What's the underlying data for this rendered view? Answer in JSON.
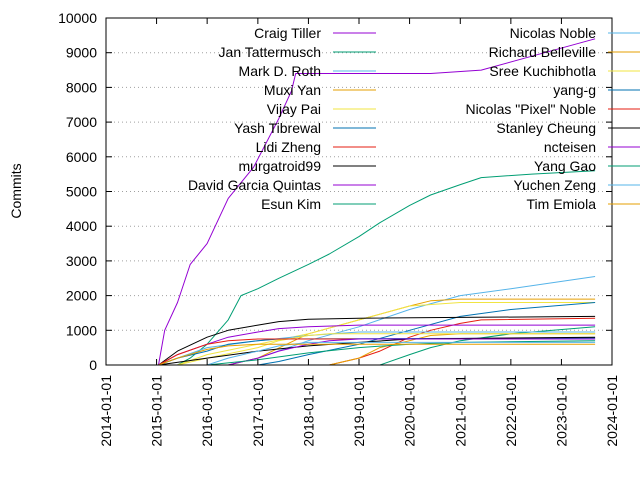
{
  "chart_data": {
    "type": "line",
    "title": "",
    "xlabel": "",
    "ylabel": "Commits",
    "xlim": [
      "2014-01-01",
      "2024-01-01"
    ],
    "ylim": [
      0,
      10000
    ],
    "y_ticks": [
      0,
      1000,
      2000,
      3000,
      4000,
      5000,
      6000,
      7000,
      8000,
      9000,
      10000
    ],
    "x_ticks": [
      "2014-01-01",
      "2015-01-01",
      "2016-01-01",
      "2017-01-01",
      "2018-01-01",
      "2019-01-01",
      "2020-01-01",
      "2021-01-01",
      "2022-01-01",
      "2023-01-01",
      "2024-01-01"
    ],
    "grid": "horizontal dotted",
    "legend_placement": "top, two columns",
    "series": [
      {
        "name": "Craig Tiller",
        "color": "#9400d3",
        "x": [
          "2015-01-15",
          "2015-03-01",
          "2015-06-01",
          "2015-09-01",
          "2016-01-01",
          "2016-06-01",
          "2016-12-01",
          "2017-06-01",
          "2017-09-01",
          "2017-10-01",
          "2018-06-01",
          "2019-06-01",
          "2020-06-01",
          "2021-06-01",
          "2022-06-01",
          "2023-09-01"
        ],
        "y": [
          0,
          1000,
          1800,
          2900,
          3500,
          4800,
          5700,
          7100,
          7900,
          8400,
          8400,
          8400,
          8400,
          8500,
          8900,
          9400
        ]
      },
      {
        "name": "Jan Tattermusch",
        "color": "#009e73",
        "x": [
          "2015-06-01",
          "2015-09-01",
          "2016-01-01",
          "2016-06-01",
          "2016-09-01",
          "2017-01-01",
          "2017-06-01",
          "2018-01-01",
          "2018-06-01",
          "2019-01-01",
          "2019-06-01",
          "2020-01-01",
          "2020-06-01",
          "2021-01-01",
          "2021-06-01",
          "2022-06-01",
          "2023-09-01"
        ],
        "y": [
          0,
          200,
          600,
          1300,
          2000,
          2200,
          2500,
          2900,
          3200,
          3700,
          4100,
          4600,
          4900,
          5200,
          5400,
          5500,
          5600
        ]
      },
      {
        "name": "Mark D. Roth",
        "color": "#56b4e9",
        "x": [
          "2016-06-01",
          "2017-01-01",
          "2018-01-01",
          "2019-01-01",
          "2020-01-01",
          "2021-01-01",
          "2022-01-01",
          "2023-09-01"
        ],
        "y": [
          0,
          200,
          700,
          1100,
          1600,
          2000,
          2200,
          2550
        ]
      },
      {
        "name": "Muxi Yan",
        "color": "#e69f00",
        "x": [
          "2016-06-01",
          "2017-01-01",
          "2018-01-01",
          "2019-01-01",
          "2020-01-01",
          "2020-06-01",
          "2021-01-01",
          "2023-09-01"
        ],
        "y": [
          0,
          200,
          900,
          1300,
          1700,
          1850,
          1900,
          1900
        ]
      },
      {
        "name": "Vijay Pai",
        "color": "#f0e442",
        "x": [
          "2015-06-01",
          "2016-01-01",
          "2017-01-01",
          "2018-01-01",
          "2019-01-01",
          "2020-01-01",
          "2021-01-01",
          "2023-09-01"
        ],
        "y": [
          0,
          300,
          600,
          900,
          1300,
          1700,
          1800,
          1800
        ]
      },
      {
        "name": "Yash Tibrewal",
        "color": "#0072b2",
        "x": [
          "2017-01-01",
          "2017-06-01",
          "2018-01-01",
          "2019-01-01",
          "2020-01-01",
          "2021-01-01",
          "2022-01-01",
          "2023-09-01"
        ],
        "y": [
          0,
          100,
          300,
          600,
          1000,
          1400,
          1600,
          1800
        ]
      },
      {
        "name": "Lidi Zheng",
        "color": "#e51e10",
        "x": [
          "2018-06-01",
          "2019-01-01",
          "2019-06-01",
          "2020-01-01",
          "2020-06-01",
          "2021-01-01",
          "2021-06-01",
          "2023-09-01"
        ],
        "y": [
          0,
          200,
          400,
          800,
          1000,
          1200,
          1300,
          1350
        ]
      },
      {
        "name": "murgatroid99",
        "color": "#000000",
        "x": [
          "2015-01-15",
          "2015-06-01",
          "2016-01-01",
          "2016-06-01",
          "2017-01-01",
          "2017-06-01",
          "2018-01-01",
          "2019-01-01",
          "2023-09-01"
        ],
        "y": [
          0,
          400,
          800,
          1000,
          1150,
          1250,
          1320,
          1350,
          1400
        ]
      },
      {
        "name": "David Garcia Quintas",
        "color": "#9400d3",
        "x": [
          "2015-01-15",
          "2015-06-01",
          "2016-01-01",
          "2016-06-01",
          "2017-01-01",
          "2017-06-01",
          "2018-01-01",
          "2019-01-01",
          "2023-09-01"
        ],
        "y": [
          0,
          300,
          600,
          800,
          950,
          1050,
          1100,
          1150,
          1150
        ]
      },
      {
        "name": "Esun Kim",
        "color": "#009e73",
        "x": [
          "2019-06-01",
          "2020-01-01",
          "2020-06-01",
          "2021-01-01",
          "2022-01-01",
          "2023-09-01"
        ],
        "y": [
          0,
          300,
          500,
          700,
          900,
          1100
        ]
      },
      {
        "name": "Nicolas Noble",
        "color": "#56b4e9",
        "x": [
          "2015-01-15",
          "2015-06-01",
          "2016-01-01",
          "2017-01-01",
          "2018-01-01",
          "2019-01-01",
          "2023-09-01"
        ],
        "y": [
          0,
          200,
          500,
          700,
          850,
          950,
          950
        ]
      },
      {
        "name": "Richard Belleville",
        "color": "#e69f00",
        "x": [
          "2018-06-01",
          "2019-01-01",
          "2019-06-01",
          "2020-01-01",
          "2020-06-01",
          "2021-01-01",
          "2023-09-01"
        ],
        "y": [
          0,
          200,
          500,
          700,
          850,
          900,
          900
        ]
      },
      {
        "name": "Sree Kuchibhotla",
        "color": "#f0e442",
        "x": [
          "2015-06-01",
          "2016-01-01",
          "2017-01-01",
          "2017-06-01",
          "2018-01-01",
          "2018-06-01",
          "2023-09-01"
        ],
        "y": [
          0,
          200,
          500,
          700,
          850,
          900,
          900
        ]
      },
      {
        "name": "yang-g",
        "color": "#0072b2",
        "x": [
          "2015-01-15",
          "2015-06-01",
          "2016-01-01",
          "2016-06-01",
          "2017-01-01",
          "2017-06-01",
          "2023-09-01"
        ],
        "y": [
          0,
          200,
          400,
          600,
          700,
          750,
          780
        ]
      },
      {
        "name": "Nicolas \"Pixel\" Noble",
        "color": "#e51e10",
        "x": [
          "2015-01-15",
          "2015-06-01",
          "2016-01-01",
          "2016-06-01",
          "2017-01-01",
          "2023-09-01"
        ],
        "y": [
          0,
          300,
          600,
          700,
          750,
          750
        ]
      },
      {
        "name": "Stanley Cheung",
        "color": "#000000",
        "x": [
          "2015-01-15",
          "2016-01-01",
          "2017-01-01",
          "2018-01-01",
          "2019-01-01",
          "2020-01-01",
          "2023-09-01"
        ],
        "y": [
          0,
          200,
          400,
          550,
          650,
          750,
          800
        ]
      },
      {
        "name": "ncteisen",
        "color": "#9400d3",
        "x": [
          "2016-06-01",
          "2017-01-01",
          "2017-06-01",
          "2018-01-01",
          "2018-06-01",
          "2019-01-01",
          "2023-09-01"
        ],
        "y": [
          0,
          200,
          400,
          600,
          700,
          750,
          750
        ]
      },
      {
        "name": "Yang Gao",
        "color": "#009e73",
        "x": [
          "2016-01-01",
          "2017-01-01",
          "2018-01-01",
          "2019-01-01",
          "2020-01-01",
          "2021-01-01",
          "2023-09-01"
        ],
        "y": [
          0,
          150,
          350,
          500,
          600,
          650,
          700
        ]
      },
      {
        "name": "Yuchen Zeng",
        "color": "#56b4e9",
        "x": [
          "2016-01-01",
          "2016-06-01",
          "2017-01-01",
          "2017-06-01",
          "2018-01-01",
          "2023-09-01"
        ],
        "y": [
          0,
          200,
          400,
          550,
          650,
          650
        ]
      },
      {
        "name": "Tim Emiola",
        "color": "#e69f00",
        "x": [
          "2015-01-15",
          "2015-06-01",
          "2016-01-01",
          "2016-06-01",
          "2017-01-01",
          "2023-09-01"
        ],
        "y": [
          0,
          200,
          450,
          550,
          600,
          600
        ]
      }
    ]
  }
}
